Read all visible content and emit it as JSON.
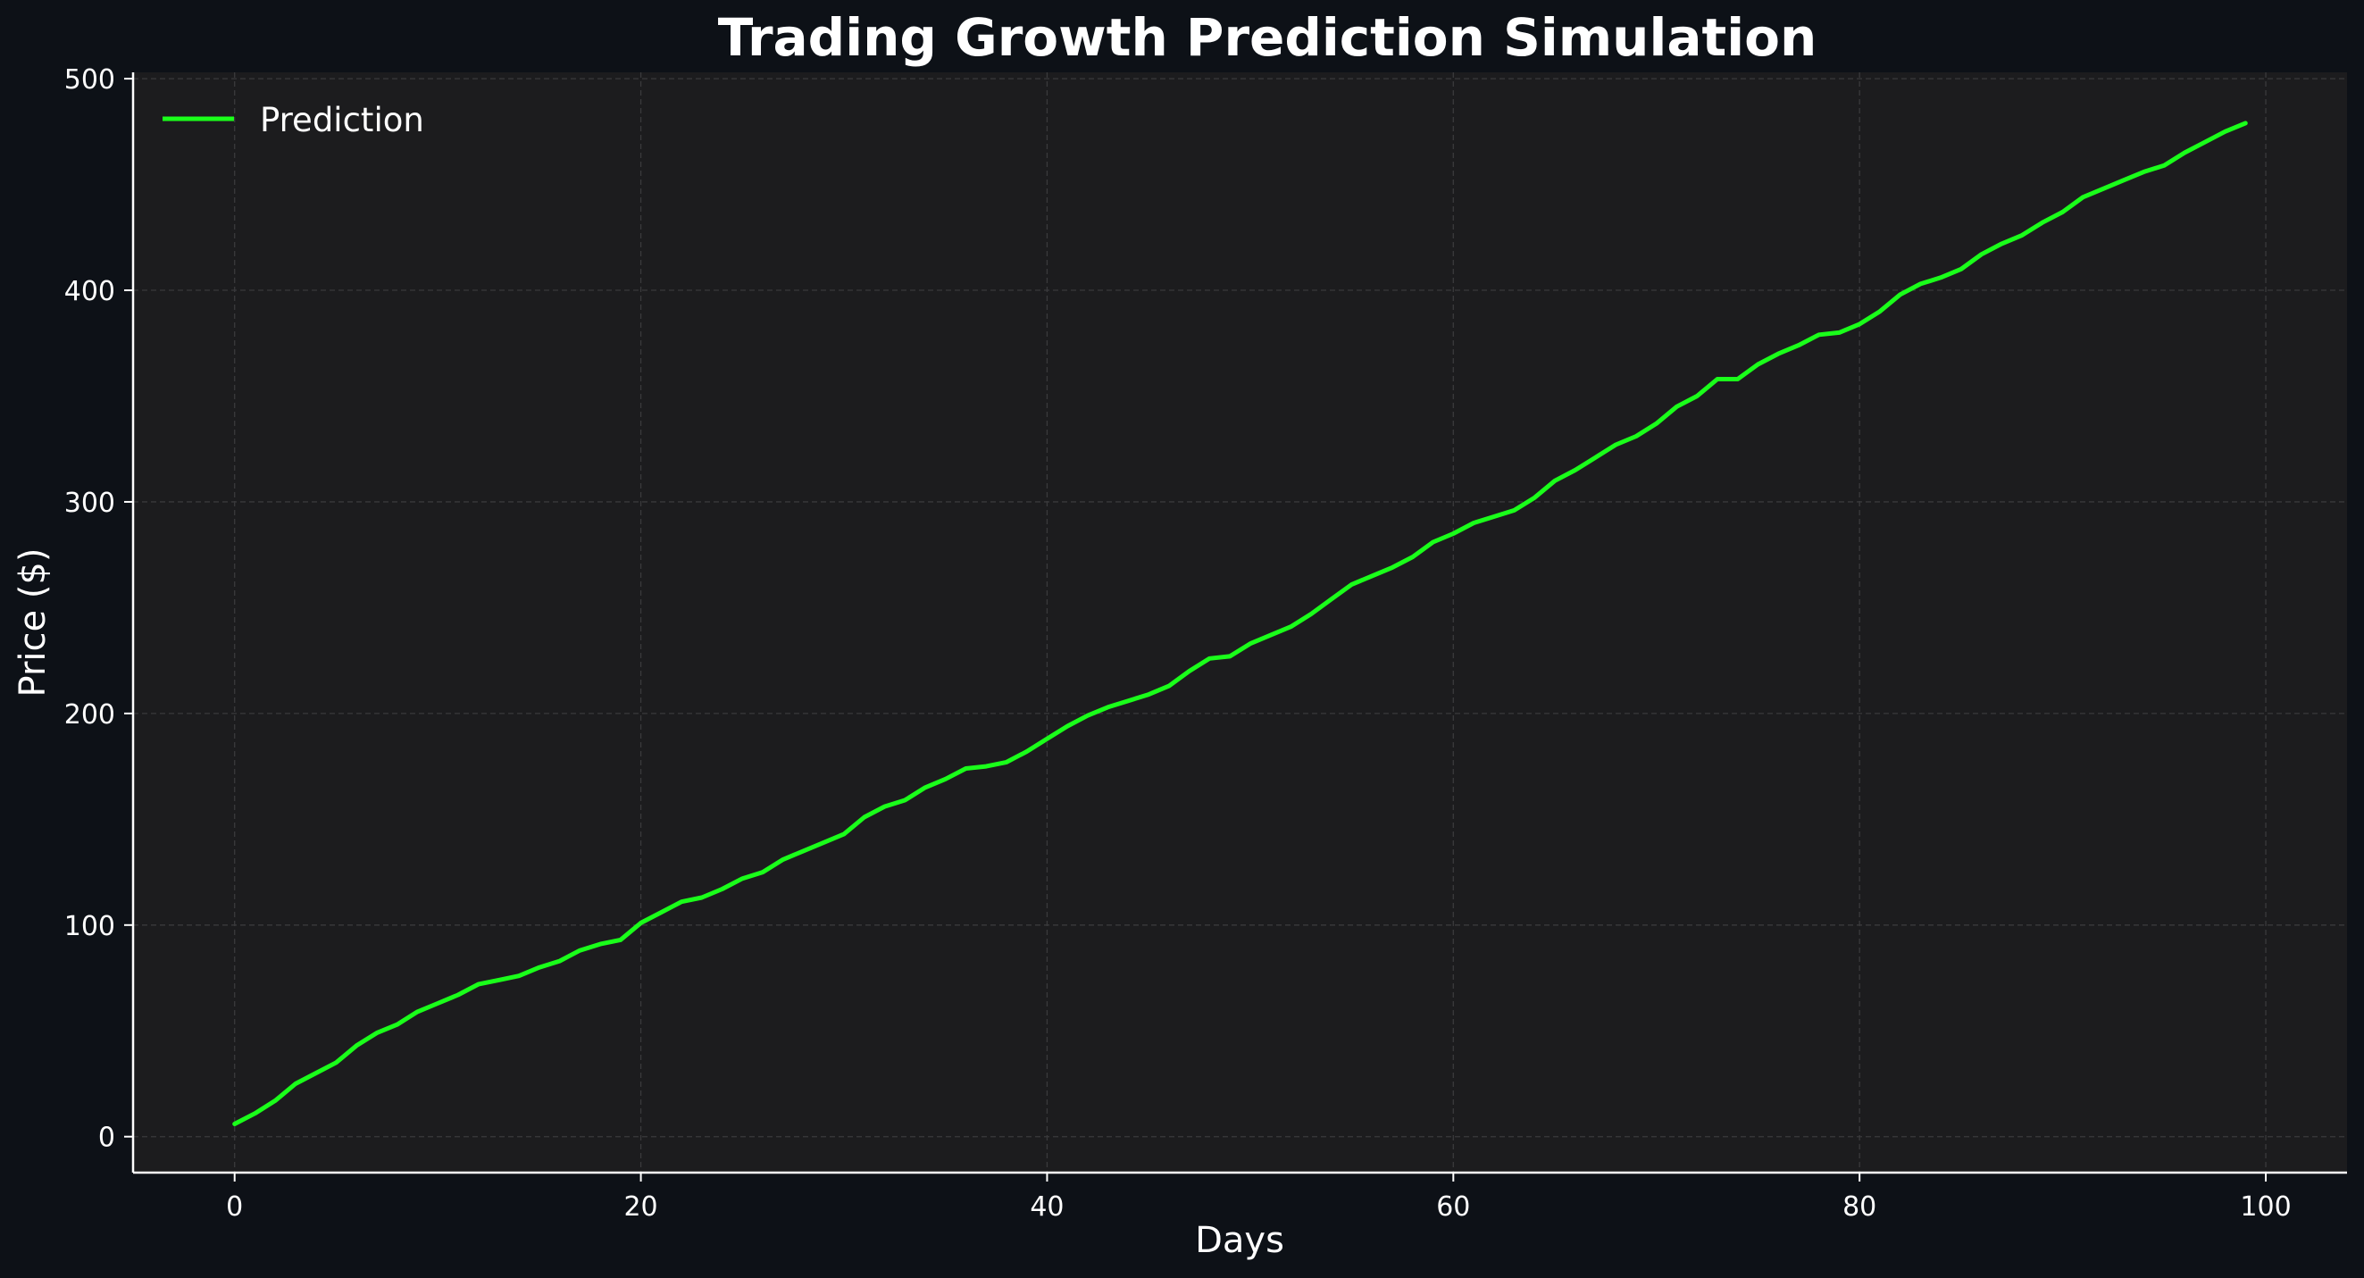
{
  "chart_data": {
    "type": "line",
    "title": "Trading Growth Prediction Simulation",
    "xlabel": "Days",
    "ylabel": "Price ($)",
    "xlim": [
      -5,
      104
    ],
    "ylim": [
      -17,
      503
    ],
    "xticks": [
      0,
      20,
      40,
      60,
      80,
      100
    ],
    "yticks": [
      0,
      100,
      200,
      300,
      400,
      500
    ],
    "grid": true,
    "legend_position": "top-left",
    "series": [
      {
        "name": "Prediction",
        "color": "#1aff1a",
        "x": [
          0,
          1,
          2,
          3,
          4,
          5,
          6,
          7,
          8,
          9,
          10,
          11,
          12,
          13,
          14,
          15,
          16,
          17,
          18,
          19,
          20,
          21,
          22,
          23,
          24,
          25,
          26,
          27,
          28,
          29,
          30,
          31,
          32,
          33,
          34,
          35,
          36,
          37,
          38,
          39,
          40,
          41,
          42,
          43,
          44,
          45,
          46,
          47,
          48,
          49,
          50,
          51,
          52,
          53,
          54,
          55,
          56,
          57,
          58,
          59,
          60,
          61,
          62,
          63,
          64,
          65,
          66,
          67,
          68,
          69,
          70,
          71,
          72,
          73,
          74,
          75,
          76,
          77,
          78,
          79,
          80,
          81,
          82,
          83,
          84,
          85,
          86,
          87,
          88,
          89,
          90,
          91,
          92,
          93,
          94,
          95,
          96,
          97,
          98,
          99
        ],
        "values": [
          6,
          11,
          17,
          25,
          30,
          35,
          43,
          49,
          53,
          59,
          63,
          67,
          72,
          74,
          76,
          80,
          83,
          88,
          91,
          93,
          101,
          106,
          111,
          113,
          117,
          122,
          125,
          131,
          135,
          139,
          143,
          151,
          156,
          159,
          165,
          169,
          174,
          175,
          177,
          182,
          188,
          194,
          199,
          203,
          206,
          209,
          213,
          220,
          226,
          227,
          233,
          237,
          241,
          247,
          254,
          261,
          265,
          269,
          274,
          281,
          285,
          290,
          293,
          296,
          302,
          310,
          315,
          321,
          327,
          331,
          337,
          345,
          350,
          358,
          358,
          365,
          370,
          374,
          379,
          380,
          384,
          390,
          398,
          403,
          406,
          410,
          417,
          422,
          426,
          432,
          437,
          444,
          448,
          452,
          456,
          459,
          465,
          470,
          475,
          479
        ]
      }
    ]
  }
}
